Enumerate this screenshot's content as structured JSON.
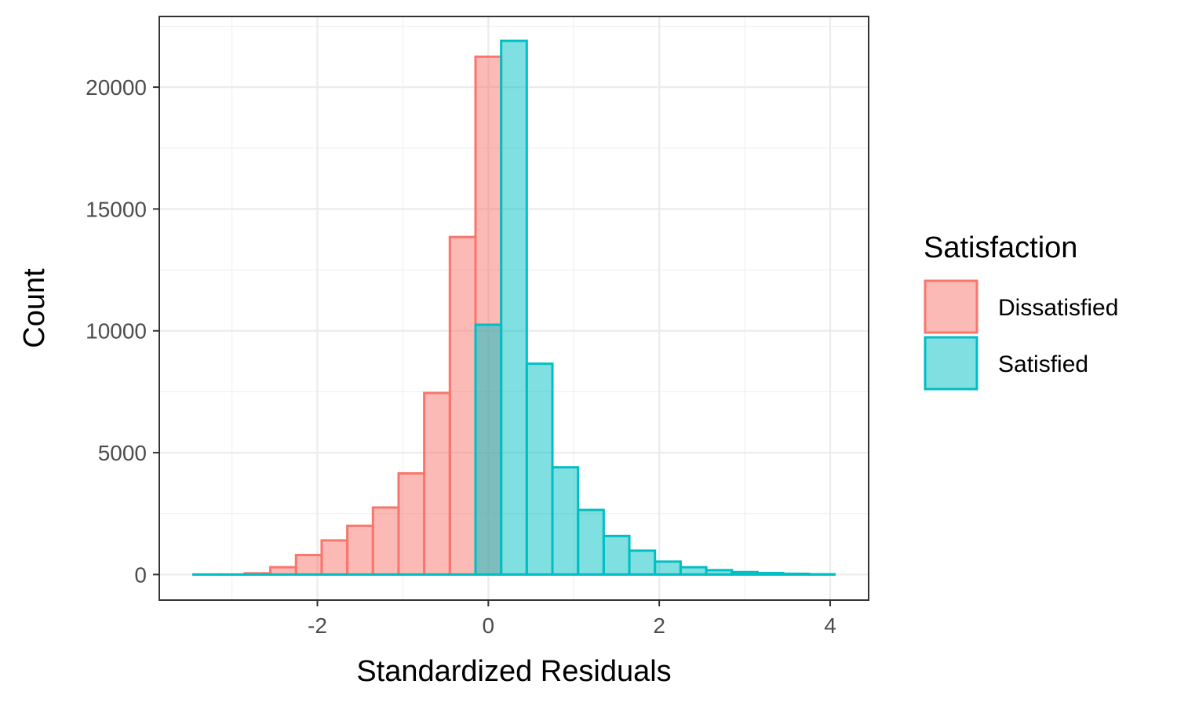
{
  "chart_data": {
    "type": "bar",
    "title": "",
    "xlabel": "Standardized Residuals",
    "ylabel": "Count",
    "xlim": [
      -3.85,
      4.45
    ],
    "ylim": [
      -1050,
      22900
    ],
    "x_ticks": [
      -2,
      0,
      2,
      4
    ],
    "x_tick_labels": [
      "-2",
      "0",
      "2",
      "4"
    ],
    "y_ticks": [
      0,
      5000,
      10000,
      15000,
      20000
    ],
    "y_tick_labels": [
      "0",
      "5000",
      "10000",
      "15000",
      "20000"
    ],
    "grid": true,
    "legend_placement": "right",
    "legend_title": "Satisfaction",
    "bin_width": 0.3,
    "bin_start": -3.45,
    "bin_count": 25,
    "series": [
      {
        "name": "Dissatisfied",
        "color": "#F8766D",
        "values": [
          0,
          0,
          50,
          300,
          800,
          1400,
          2000,
          2750,
          4150,
          7450,
          13850,
          21250,
          0,
          0,
          0,
          0,
          0,
          0,
          0,
          0,
          0,
          0,
          0,
          0,
          0
        ]
      },
      {
        "name": "Satisfied",
        "color": "#00BFC4",
        "values": [
          0,
          0,
          0,
          0,
          0,
          0,
          0,
          0,
          0,
          0,
          0,
          10250,
          21900,
          8650,
          4400,
          2650,
          1580,
          980,
          530,
          300,
          180,
          100,
          60,
          30,
          10
        ]
      }
    ]
  }
}
